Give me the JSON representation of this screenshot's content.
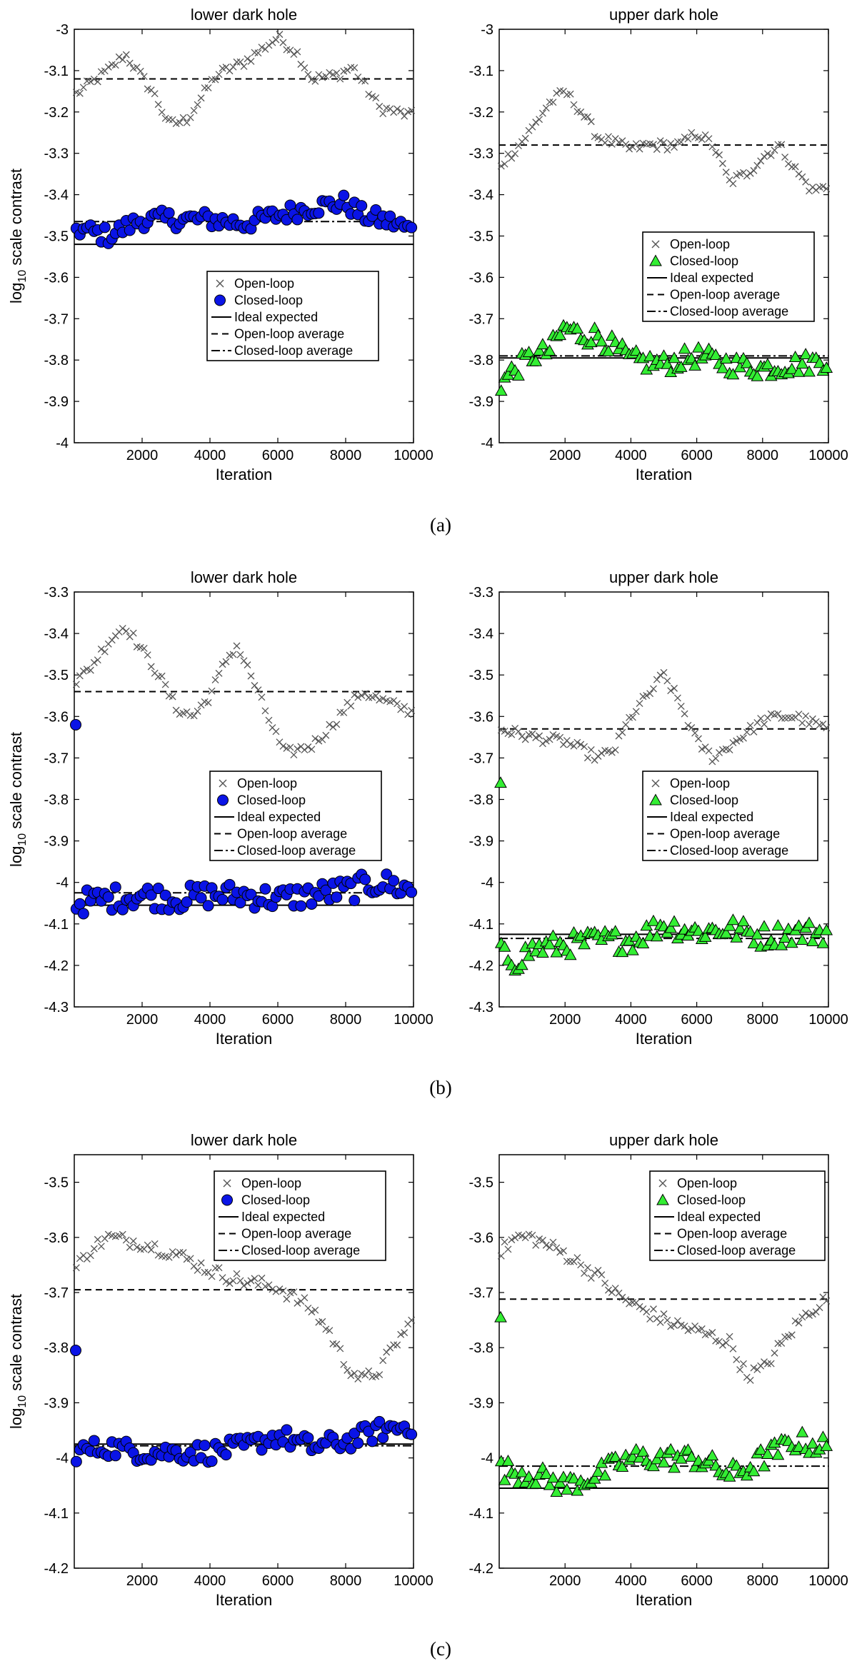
{
  "figure": {
    "panel_labels": [
      "(a)",
      "(b)",
      "(c)"
    ],
    "legend_common": [
      "Open-loop",
      "Closed-loop",
      "Ideal expected",
      "Open-loop average",
      "Closed-loop average"
    ],
    "ylabel_main": "log",
    "ylabel_sub": "10",
    "ylabel_rest": " scale contrast",
    "xlabel": "Iteration"
  },
  "colors": {
    "blue_marker": "#0a14e6",
    "green_marker": "#33ee33",
    "open_loop": "#555555",
    "axis": "#000000"
  },
  "chart_data": [
    {
      "type": "scatter",
      "title": "lower dark hole",
      "xlabel": "Iteration",
      "ylabel": "log 10 scale contrast",
      "xlim": [
        0,
        10000
      ],
      "ylim": [
        -4.0,
        -3.0
      ],
      "xticks": [
        2000,
        4000,
        6000,
        8000,
        10000
      ],
      "yticks": [
        -3,
        -3.1,
        -3.2,
        -3.3,
        -3.4,
        -3.5,
        -3.6,
        -3.7,
        -3.8,
        -3.9,
        -4
      ],
      "closed_marker": "circle",
      "closed_color": "blue",
      "legend": [
        "Open-loop",
        "Closed-loop",
        "Ideal expected",
        "Open-loop average",
        "Closed-loop average"
      ],
      "legend_position": "center-right",
      "ideal_expected": -3.52,
      "open_loop_average": -3.12,
      "closed_loop_average": -3.465,
      "first_closed": null,
      "open_loop_points": [
        [
          0,
          -3.16
        ],
        [
          1000,
          -3.1
        ],
        [
          1500,
          -3.06
        ],
        [
          2300,
          -3.15
        ],
        [
          2800,
          -3.23
        ],
        [
          3300,
          -3.22
        ],
        [
          4200,
          -3.11
        ],
        [
          5000,
          -3.08
        ],
        [
          6000,
          -3.02
        ],
        [
          6600,
          -3.06
        ],
        [
          7000,
          -3.12
        ],
        [
          7800,
          -3.11
        ],
        [
          8200,
          -3.09
        ],
        [
          9000,
          -3.19
        ],
        [
          10000,
          -3.21
        ]
      ],
      "closed_loop_points": [
        [
          0,
          -3.48
        ],
        [
          1000,
          -3.5
        ],
        [
          2000,
          -3.46
        ],
        [
          3000,
          -3.46
        ],
        [
          4000,
          -3.46
        ],
        [
          5000,
          -3.47
        ],
        [
          6000,
          -3.45
        ],
        [
          7000,
          -3.43
        ],
        [
          8000,
          -3.42
        ],
        [
          8500,
          -3.45
        ],
        [
          9000,
          -3.46
        ],
        [
          9500,
          -3.47
        ],
        [
          10000,
          -3.49
        ]
      ],
      "closed_noise": 0.022
    },
    {
      "type": "scatter",
      "title": "upper dark hole",
      "xlabel": "Iteration",
      "ylabel": "",
      "xlim": [
        0,
        10000
      ],
      "ylim": [
        -4.0,
        -3.0
      ],
      "xticks": [
        2000,
        4000,
        6000,
        8000,
        10000
      ],
      "yticks": [
        -3,
        -3.1,
        -3.2,
        -3.3,
        -3.4,
        -3.5,
        -3.6,
        -3.7,
        -3.8,
        -3.9,
        -4
      ],
      "closed_marker": "triangle",
      "closed_color": "green",
      "legend": [
        "Open-loop",
        "Closed-loop",
        "Ideal expected",
        "Open-loop average",
        "Closed-loop average"
      ],
      "legend_position": "center-right",
      "ideal_expected": -3.795,
      "open_loop_average": -3.28,
      "closed_loop_average": -3.79,
      "first_closed": null,
      "open_loop_points": [
        [
          0,
          -3.33
        ],
        [
          500,
          -3.29
        ],
        [
          1000,
          -3.24
        ],
        [
          1500,
          -3.18
        ],
        [
          2000,
          -3.15
        ],
        [
          2500,
          -3.2
        ],
        [
          3000,
          -3.26
        ],
        [
          4000,
          -3.29
        ],
        [
          4500,
          -3.28
        ],
        [
          5000,
          -3.28
        ],
        [
          5500,
          -3.28
        ],
        [
          6000,
          -3.25
        ],
        [
          6500,
          -3.28
        ],
        [
          7000,
          -3.37
        ],
        [
          7500,
          -3.35
        ],
        [
          8000,
          -3.31
        ],
        [
          8500,
          -3.28
        ],
        [
          9000,
          -3.34
        ],
        [
          9500,
          -3.39
        ],
        [
          10000,
          -3.38
        ]
      ],
      "closed_loop_points": [
        [
          0,
          -3.86
        ],
        [
          500,
          -3.82
        ],
        [
          1000,
          -3.79
        ],
        [
          1500,
          -3.78
        ],
        [
          2000,
          -3.72
        ],
        [
          2500,
          -3.74
        ],
        [
          3000,
          -3.74
        ],
        [
          3500,
          -3.77
        ],
        [
          4000,
          -3.8
        ],
        [
          5000,
          -3.81
        ],
        [
          6000,
          -3.79
        ],
        [
          7000,
          -3.81
        ],
        [
          8000,
          -3.82
        ],
        [
          9000,
          -3.81
        ],
        [
          10000,
          -3.8
        ]
      ],
      "closed_noise": 0.025
    },
    {
      "type": "scatter",
      "title": "lower dark hole",
      "xlabel": "Iteration",
      "ylabel": "log 10 scale contrast",
      "xlim": [
        0,
        10000
      ],
      "ylim": [
        -4.3,
        -3.3
      ],
      "xticks": [
        2000,
        4000,
        6000,
        8000,
        10000
      ],
      "yticks": [
        -3.3,
        -3.4,
        -3.5,
        -3.6,
        -3.7,
        -3.8,
        -3.9,
        -4,
        -4.1,
        -4.2,
        -4.3
      ],
      "closed_marker": "circle",
      "closed_color": "blue",
      "legend": [
        "Open-loop",
        "Closed-loop",
        "Ideal expected",
        "Open-loop average",
        "Closed-loop average"
      ],
      "legend_position": "center-right",
      "ideal_expected": -4.055,
      "open_loop_average": -3.54,
      "closed_loop_average": -4.025,
      "first_closed": -3.62,
      "open_loop_points": [
        [
          0,
          -3.52
        ],
        [
          500,
          -3.48
        ],
        [
          1000,
          -3.42
        ],
        [
          1500,
          -3.38
        ],
        [
          2000,
          -3.44
        ],
        [
          2500,
          -3.5
        ],
        [
          3000,
          -3.58
        ],
        [
          3500,
          -3.6
        ],
        [
          4000,
          -3.55
        ],
        [
          4500,
          -3.46
        ],
        [
          4800,
          -3.43
        ],
        [
          5200,
          -3.5
        ],
        [
          5700,
          -3.6
        ],
        [
          6200,
          -3.69
        ],
        [
          7000,
          -3.67
        ],
        [
          7500,
          -3.63
        ],
        [
          8000,
          -3.58
        ],
        [
          8500,
          -3.54
        ],
        [
          9000,
          -3.56
        ],
        [
          10000,
          -3.59
        ]
      ],
      "closed_loop_points": [
        [
          0,
          -4.05
        ],
        [
          1000,
          -4.04
        ],
        [
          2000,
          -4.03
        ],
        [
          3000,
          -4.04
        ],
        [
          4000,
          -4.03
        ],
        [
          5000,
          -4.03
        ],
        [
          6000,
          -4.04
        ],
        [
          7000,
          -4.03
        ],
        [
          8000,
          -4.02
        ],
        [
          9000,
          -4.0
        ],
        [
          10000,
          -4.02
        ]
      ],
      "closed_noise": 0.03
    },
    {
      "type": "scatter",
      "title": "upper dark hole",
      "xlabel": "Iteration",
      "ylabel": "",
      "xlim": [
        0,
        10000
      ],
      "ylim": [
        -4.3,
        -3.3
      ],
      "xticks": [
        2000,
        4000,
        6000,
        8000,
        10000
      ],
      "yticks": [
        -3.3,
        -3.4,
        -3.5,
        -3.6,
        -3.7,
        -3.8,
        -3.9,
        -4,
        -4.1,
        -4.2,
        -4.3
      ],
      "closed_marker": "triangle",
      "closed_color": "green",
      "legend": [
        "Open-loop",
        "Closed-loop",
        "Ideal expected",
        "Open-loop average",
        "Closed-loop average"
      ],
      "legend_position": "center-right",
      "ideal_expected": -4.125,
      "open_loop_average": -3.63,
      "closed_loop_average": -4.135,
      "first_closed": -3.76,
      "open_loop_points": [
        [
          0,
          -3.63
        ],
        [
          1000,
          -3.65
        ],
        [
          2000,
          -3.66
        ],
        [
          3000,
          -3.7
        ],
        [
          3500,
          -3.68
        ],
        [
          4000,
          -3.6
        ],
        [
          4500,
          -3.55
        ],
        [
          5000,
          -3.5
        ],
        [
          5500,
          -3.57
        ],
        [
          6000,
          -3.66
        ],
        [
          6500,
          -3.7
        ],
        [
          7000,
          -3.67
        ],
        [
          7500,
          -3.64
        ],
        [
          8000,
          -3.61
        ],
        [
          8500,
          -3.6
        ],
        [
          9000,
          -3.6
        ],
        [
          10000,
          -3.63
        ]
      ],
      "closed_loop_points": [
        [
          0,
          -4.17
        ],
        [
          500,
          -4.19
        ],
        [
          1000,
          -4.16
        ],
        [
          2000,
          -4.15
        ],
        [
          3000,
          -4.14
        ],
        [
          4000,
          -4.14
        ],
        [
          5000,
          -4.1
        ],
        [
          6000,
          -4.12
        ],
        [
          7000,
          -4.11
        ],
        [
          8000,
          -4.13
        ],
        [
          9000,
          -4.12
        ],
        [
          10000,
          -4.12
        ]
      ],
      "closed_noise": 0.028
    },
    {
      "type": "scatter",
      "title": "lower dark hole",
      "xlabel": "Iteration",
      "ylabel": "log 10 scale contrast",
      "xlim": [
        0,
        10000
      ],
      "ylim": [
        -4.2,
        -3.45
      ],
      "xticks": [
        2000,
        4000,
        6000,
        8000,
        10000
      ],
      "yticks": [
        -3.5,
        -3.6,
        -3.7,
        -3.8,
        -3.9,
        -4,
        -4.1,
        -4.2
      ],
      "closed_marker": "circle",
      "closed_color": "blue",
      "legend": [
        "Open-loop",
        "Closed-loop",
        "Ideal expected",
        "Open-loop average",
        "Closed-loop average"
      ],
      "legend_position": "top-right",
      "ideal_expected": -3.975,
      "open_loop_average": -3.695,
      "closed_loop_average": -3.978,
      "first_closed": -3.805,
      "open_loop_points": [
        [
          0,
          -3.66
        ],
        [
          500,
          -3.62
        ],
        [
          1000,
          -3.6
        ],
        [
          2000,
          -3.61
        ],
        [
          3000,
          -3.63
        ],
        [
          4000,
          -3.66
        ],
        [
          5000,
          -3.68
        ],
        [
          6000,
          -3.69
        ],
        [
          7000,
          -3.73
        ],
        [
          7500,
          -3.77
        ],
        [
          8000,
          -3.83
        ],
        [
          8500,
          -3.86
        ],
        [
          9000,
          -3.84
        ],
        [
          9500,
          -3.79
        ],
        [
          10000,
          -3.75
        ]
      ],
      "closed_loop_points": [
        [
          0,
          -3.99
        ],
        [
          1000,
          -3.98
        ],
        [
          2000,
          -3.99
        ],
        [
          3000,
          -3.99
        ],
        [
          4000,
          -3.99
        ],
        [
          5000,
          -3.98
        ],
        [
          6000,
          -3.96
        ],
        [
          7000,
          -3.98
        ],
        [
          8000,
          -3.97
        ],
        [
          9000,
          -3.95
        ],
        [
          10000,
          -3.94
        ]
      ],
      "closed_noise": 0.018
    },
    {
      "type": "scatter",
      "title": "upper dark hole",
      "xlabel": "Iteration",
      "ylabel": "",
      "xlim": [
        0,
        10000
      ],
      "ylim": [
        -4.2,
        -3.45
      ],
      "xticks": [
        2000,
        4000,
        6000,
        8000,
        10000
      ],
      "yticks": [
        -3.5,
        -3.6,
        -3.7,
        -3.8,
        -3.9,
        -4,
        -4.1,
        -4.2
      ],
      "closed_marker": "triangle",
      "closed_color": "green",
      "legend": [
        "Open-loop",
        "Closed-loop",
        "Ideal expected",
        "Open-loop average",
        "Closed-loop average"
      ],
      "legend_position": "top-right",
      "ideal_expected": -4.055,
      "open_loop_average": -3.712,
      "closed_loop_average": -4.015,
      "first_closed": -3.745,
      "open_loop_points": [
        [
          0,
          -3.63
        ],
        [
          500,
          -3.6
        ],
        [
          1000,
          -3.6
        ],
        [
          2000,
          -3.63
        ],
        [
          3000,
          -3.67
        ],
        [
          3500,
          -3.7
        ],
        [
          4000,
          -3.72
        ],
        [
          5000,
          -3.75
        ],
        [
          6000,
          -3.77
        ],
        [
          7000,
          -3.79
        ],
        [
          7500,
          -3.85
        ],
        [
          8000,
          -3.84
        ],
        [
          8500,
          -3.8
        ],
        [
          9000,
          -3.76
        ],
        [
          9500,
          -3.73
        ],
        [
          10000,
          -3.71
        ]
      ],
      "closed_loop_points": [
        [
          0,
          -4.02
        ],
        [
          1000,
          -4.03
        ],
        [
          2000,
          -4.05
        ],
        [
          3000,
          -4.03
        ],
        [
          4000,
          -4.0
        ],
        [
          5000,
          -4.0
        ],
        [
          6000,
          -4.0
        ],
        [
          7000,
          -4.03
        ],
        [
          7500,
          -4.02
        ],
        [
          8000,
          -4.0
        ],
        [
          9000,
          -3.97
        ],
        [
          10000,
          -3.98
        ]
      ],
      "closed_noise": 0.02
    }
  ]
}
